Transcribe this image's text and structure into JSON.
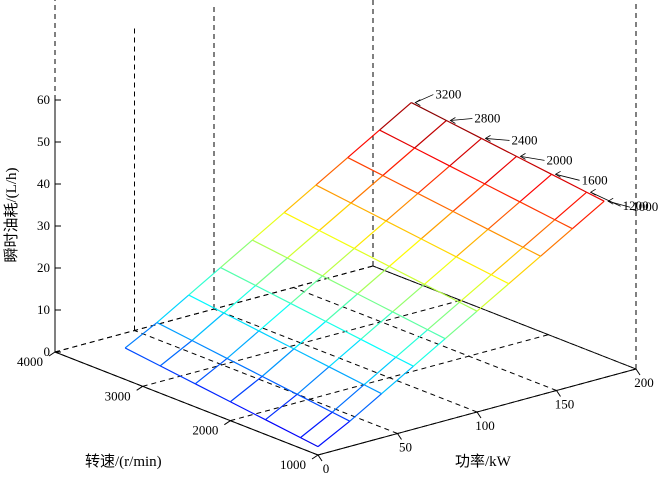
{
  "chart_data": {
    "type": "surface",
    "title": "",
    "xlabel": "功率/kW",
    "ylabel": "转速/(r/min)",
    "zlabel": "瞬时油耗/(L/h)",
    "xlim": [
      0,
      200
    ],
    "ylim": [
      1000,
      4000
    ],
    "zlim": [
      0,
      60
    ],
    "x_ticks": [
      "0",
      "50",
      "100",
      "150",
      "200"
    ],
    "y_ticks": [
      "1000",
      "2000",
      "3000",
      "4000"
    ],
    "z_ticks": [
      "0",
      "10",
      "20",
      "30",
      "40",
      "50",
      "60"
    ],
    "grid": true,
    "colormap": "jet",
    "power_kw": [
      0,
      20,
      40,
      60,
      80,
      100,
      120,
      140,
      160,
      180
    ],
    "speed_series": [
      {
        "rpm": 1000,
        "label": "1000",
        "values": [
          2,
          6,
          10.5,
          15,
          19.5,
          24,
          28.5,
          33,
          37.5,
          42
        ]
      },
      {
        "rpm": 1200,
        "label": "1200",
        "values": [
          2.5,
          6.5,
          11,
          15.5,
          20,
          24.5,
          29,
          33.5,
          38,
          42.5
        ]
      },
      {
        "rpm": 1600,
        "label": "1600",
        "values": [
          3.5,
          7.5,
          12,
          16.5,
          21,
          25.5,
          30,
          34.5,
          39,
          43.5
        ]
      },
      {
        "rpm": 2000,
        "label": "2000",
        "values": [
          4.5,
          8.5,
          13,
          17.5,
          22,
          26.5,
          31,
          35.5,
          40,
          44.5
        ]
      },
      {
        "rpm": 2400,
        "label": "2400",
        "values": [
          5.5,
          9.5,
          14,
          18.5,
          23,
          27.5,
          32,
          36.5,
          41,
          45.5
        ]
      },
      {
        "rpm": 2800,
        "label": "2800",
        "values": [
          6.5,
          10.5,
          15,
          19.5,
          24,
          28.5,
          33,
          37.5,
          42,
          46.5
        ]
      },
      {
        "rpm": 3200,
        "label": "3200",
        "values": [
          7.5,
          11.5,
          16,
          20.5,
          25,
          29.5,
          34,
          38.5,
          43,
          47.5
        ]
      }
    ]
  }
}
